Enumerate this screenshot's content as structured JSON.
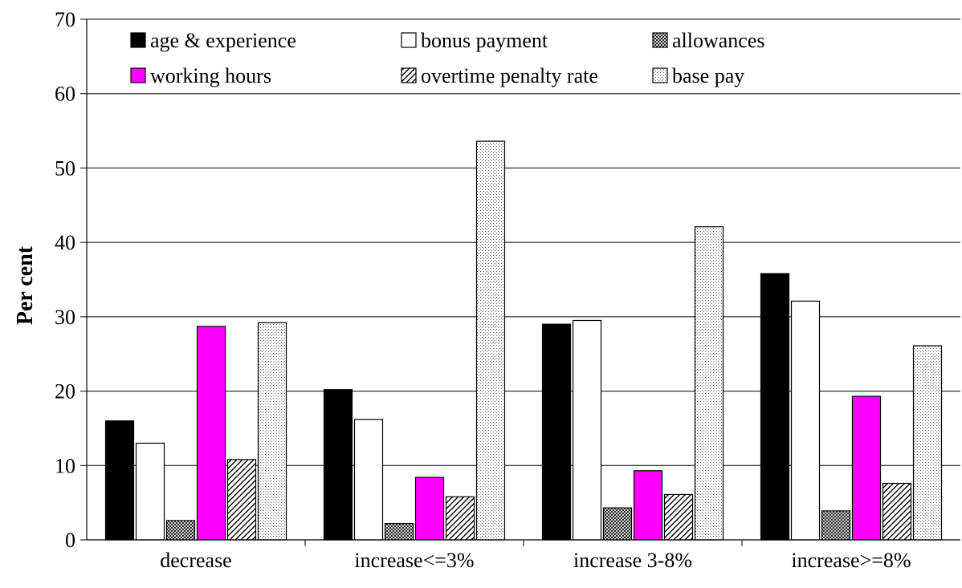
{
  "chart_data": {
    "type": "bar",
    "title": "",
    "xlabel": "",
    "ylabel": "Per cent",
    "ylim": [
      0,
      70
    ],
    "yticks": [
      0,
      10,
      20,
      30,
      40,
      50,
      60,
      70
    ],
    "grid": true,
    "legend_position": "top",
    "categories": [
      "decrease",
      "increase<=3%",
      "increase 3-8%",
      "increase>=8%"
    ],
    "series": [
      {
        "name": "age & experience",
        "values": [
          16,
          20.2,
          29,
          35.8
        ],
        "color": "#000000",
        "pattern": "solid"
      },
      {
        "name": "bonus payment",
        "values": [
          13,
          16.2,
          29.5,
          32.1
        ],
        "color": "#ffffff",
        "pattern": "solid"
      },
      {
        "name": "allowances",
        "values": [
          2.6,
          2.2,
          4.3,
          3.9
        ],
        "color": "#ffffff",
        "pattern": "crosshatch"
      },
      {
        "name": "working hours",
        "values": [
          28.7,
          8.4,
          9.3,
          19.3
        ],
        "color": "#ff00ff",
        "pattern": "solid"
      },
      {
        "name": "overtime penalty rate",
        "values": [
          10.8,
          5.8,
          6.1,
          7.6
        ],
        "color": "#ffffff",
        "pattern": "diagonal"
      },
      {
        "name": "base pay",
        "values": [
          29.2,
          53.6,
          42.1,
          26.1
        ],
        "color": "#ffffff",
        "pattern": "dots"
      }
    ]
  }
}
